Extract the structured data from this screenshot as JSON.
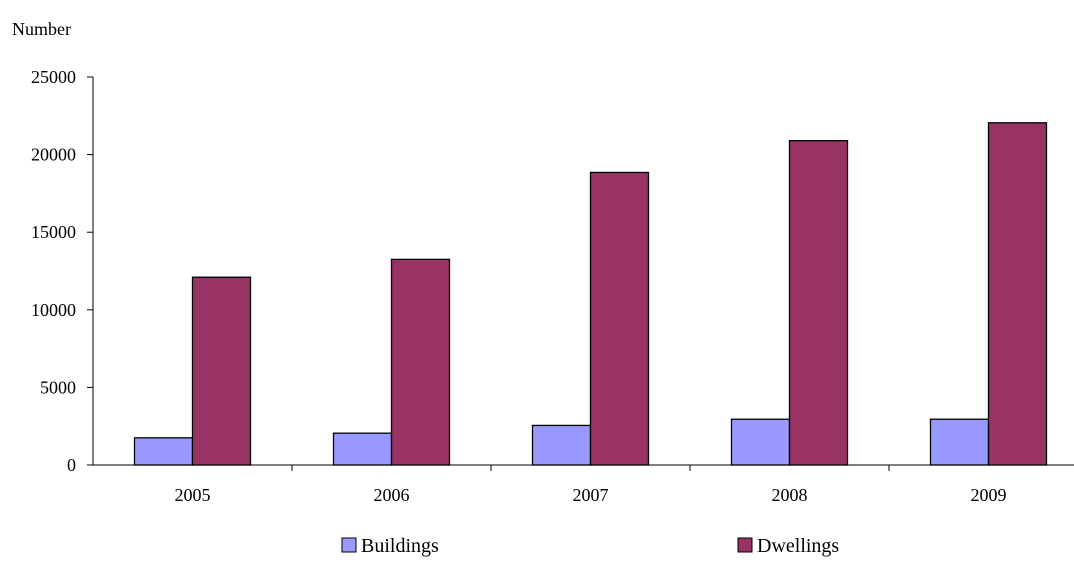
{
  "chart_data": {
    "type": "bar",
    "ylabel": "Number",
    "xlabel": "",
    "title": "",
    "categories": [
      "2005",
      "2006",
      "2007",
      "2008",
      "2009"
    ],
    "ylim": [
      0,
      25000
    ],
    "yticks": [
      0,
      5000,
      10000,
      15000,
      20000,
      25000
    ],
    "grid": false,
    "legend_position": "bottom",
    "series": [
      {
        "name": "Buildings",
        "color": "#9999ff",
        "values": [
          1750,
          2050,
          2550,
          2950,
          2950
        ]
      },
      {
        "name": "Dwellings",
        "color": "#993366",
        "values": [
          12100,
          13250,
          18850,
          20900,
          22050
        ]
      }
    ]
  }
}
